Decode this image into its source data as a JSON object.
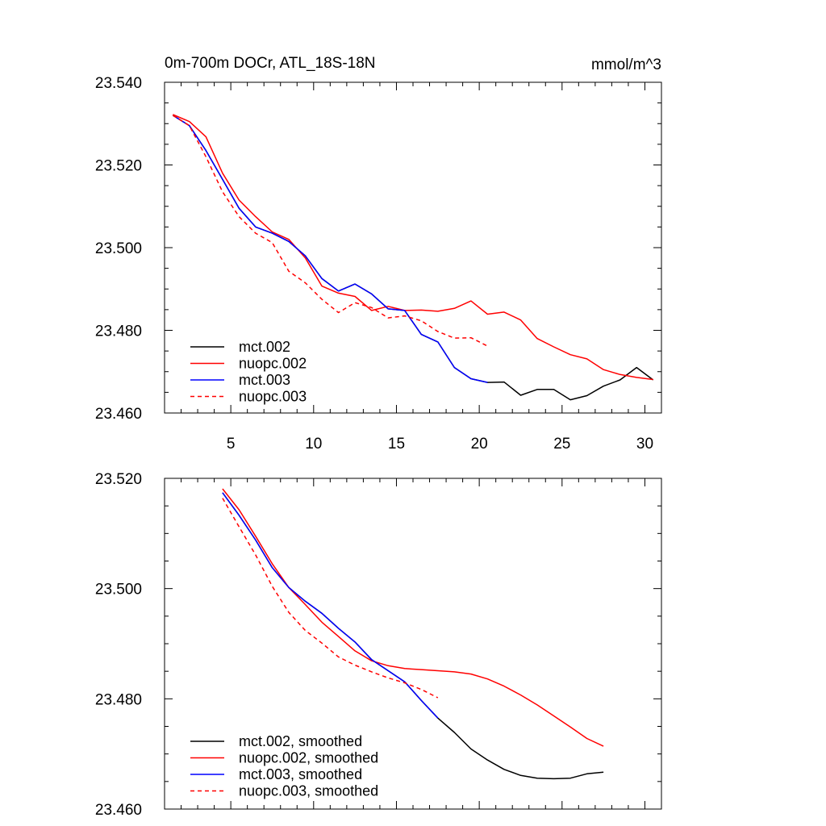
{
  "chart_data": [
    {
      "type": "line",
      "title_left": "0m-700m DOCr, ATL_18S-18N",
      "title_right": "mmol/m^3",
      "xlabel": "",
      "ylabel": "",
      "xlim": [
        1,
        31
      ],
      "ylim": [
        23.46,
        23.54
      ],
      "xticks": [
        5,
        10,
        15,
        20,
        25,
        30
      ],
      "yticks": [
        23.46,
        23.48,
        23.5,
        23.52,
        23.54
      ],
      "ytick_labels": [
        "23.460",
        "23.480",
        "23.500",
        "23.520",
        "23.540"
      ],
      "xtick_labels": [
        "5",
        "10",
        "15",
        "20",
        "25",
        "30"
      ],
      "legend_position": "bottom-left",
      "series": [
        {
          "name": "mct.002",
          "color": "#000000",
          "dash": "solid",
          "x": [
            1.5,
            2.5,
            3.5,
            4.5,
            5.5,
            6.5,
            7.5,
            8.5,
            9.5,
            10.5,
            11.5,
            12.5,
            13.5,
            14.5,
            15.5,
            16.5,
            17.5,
            18.5,
            19.5,
            20.5,
            21.5,
            22.5,
            23.5,
            24.5,
            25.5,
            26.5,
            27.5,
            28.5,
            29.5,
            30.5
          ],
          "y": [
            23.532,
            23.5295,
            23.5235,
            23.5165,
            23.5095,
            23.505,
            23.5035,
            23.5015,
            23.498,
            23.4925,
            23.4895,
            23.4912,
            23.4888,
            23.4852,
            23.4848,
            23.479,
            23.4772,
            23.471,
            23.4683,
            23.4674,
            23.4675,
            23.4643,
            23.4657,
            23.4657,
            23.4632,
            23.4642,
            23.4665,
            23.468,
            23.471,
            23.468
          ]
        },
        {
          "name": "nuopc.002",
          "color": "#ff0000",
          "dash": "solid",
          "x": [
            1.5,
            2.5,
            3.5,
            4.5,
            5.5,
            6.5,
            7.5,
            8.5,
            9.5,
            10.5,
            11.5,
            12.5,
            13.5,
            14.5,
            15.5,
            16.5,
            17.5,
            18.5,
            19.5,
            20.5,
            21.5,
            22.5,
            23.5,
            24.5,
            25.5,
            26.5,
            27.5,
            28.5,
            29.5,
            30.5
          ],
          "y": [
            23.5322,
            23.5305,
            23.5268,
            23.518,
            23.5115,
            23.5075,
            23.5038,
            23.502,
            23.4975,
            23.4907,
            23.489,
            23.4882,
            23.4848,
            23.4858,
            23.4848,
            23.4849,
            23.4846,
            23.4853,
            23.4871,
            23.4839,
            23.4844,
            23.4825,
            23.478,
            23.476,
            23.4741,
            23.4731,
            23.4705,
            23.4693,
            23.4686,
            23.4681
          ]
        },
        {
          "name": "mct.003",
          "color": "#0000ff",
          "dash": "solid",
          "x": [
            1.5,
            2.5,
            3.5,
            4.5,
            5.5,
            6.5,
            7.5,
            8.5,
            9.5,
            10.5,
            11.5,
            12.5,
            13.5,
            14.5,
            15.5,
            16.5,
            17.5,
            18.5,
            19.5,
            20.5
          ],
          "y": [
            23.532,
            23.5295,
            23.5235,
            23.5165,
            23.5095,
            23.505,
            23.5035,
            23.5015,
            23.498,
            23.4925,
            23.4895,
            23.4912,
            23.4888,
            23.4852,
            23.4848,
            23.479,
            23.4772,
            23.471,
            23.4683,
            23.4674
          ]
        },
        {
          "name": "nuopc.003",
          "color": "#ff0000",
          "dash": "dashed",
          "x": [
            1.5,
            2.5,
            3.5,
            4.5,
            5.5,
            6.5,
            7.5,
            8.5,
            9.5,
            10.5,
            11.5,
            12.5,
            13.5,
            14.5,
            15.5,
            16.5,
            17.5,
            18.5,
            19.5,
            20.5
          ],
          "y": [
            23.532,
            23.5295,
            23.522,
            23.5135,
            23.5075,
            23.5035,
            23.5012,
            23.4943,
            23.4915,
            23.4875,
            23.4843,
            23.4867,
            23.4855,
            23.483,
            23.4835,
            23.4823,
            23.4797,
            23.4781,
            23.4782,
            23.4762
          ]
        }
      ]
    },
    {
      "type": "line",
      "title_left": "",
      "title_right": "",
      "xlabel": "",
      "ylabel": "",
      "xlim": [
        1,
        31
      ],
      "ylim": [
        23.46,
        23.52
      ],
      "xticks": [
        5,
        10,
        15,
        20,
        25,
        30
      ],
      "yticks": [
        23.46,
        23.48,
        23.5,
        23.52
      ],
      "ytick_labels": [
        "23.460",
        "23.480",
        "23.500",
        "23.520"
      ],
      "xtick_labels": [],
      "legend_position": "bottom-left",
      "series": [
        {
          "name": "mct.002, smoothed",
          "color": "#000000",
          "dash": "solid",
          "x": [
            4.5,
            5.5,
            6.5,
            7.5,
            8.5,
            9.5,
            10.5,
            11.5,
            12.5,
            13.5,
            14.5,
            15.5,
            16.5,
            17.5,
            18.5,
            19.5,
            20.5,
            21.5,
            22.5,
            23.5,
            24.5,
            25.5,
            26.5,
            27.5
          ],
          "y": [
            23.5174,
            23.5133,
            23.5088,
            23.5038,
            23.5002,
            23.4977,
            23.4955,
            23.4928,
            23.4903,
            23.4871,
            23.4851,
            23.4831,
            23.4797,
            23.4765,
            23.4739,
            23.4709,
            23.4689,
            23.4672,
            23.4661,
            23.4656,
            23.4655,
            23.4656,
            23.4664,
            23.4667
          ]
        },
        {
          "name": "nuopc.002, smoothed",
          "color": "#ff0000",
          "dash": "solid",
          "x": [
            4.5,
            5.5,
            6.5,
            7.5,
            8.5,
            9.5,
            10.5,
            11.5,
            12.5,
            13.5,
            14.5,
            15.5,
            16.5,
            17.5,
            18.5,
            19.5,
            20.5,
            21.5,
            22.5,
            23.5,
            24.5,
            25.5,
            26.5,
            27.5
          ],
          "y": [
            23.5181,
            23.5143,
            23.5095,
            23.5045,
            23.5002,
            23.4971,
            23.4939,
            23.4913,
            23.4887,
            23.4869,
            23.486,
            23.4855,
            23.4853,
            23.4851,
            23.4849,
            23.4845,
            23.4836,
            23.4823,
            23.4807,
            23.4789,
            23.4769,
            23.4749,
            23.4728,
            23.4714
          ]
        },
        {
          "name": "mct.003, smoothed",
          "color": "#0000ff",
          "dash": "solid",
          "x": [
            4.5,
            5.5,
            6.5,
            7.5,
            8.5,
            9.5,
            10.5,
            11.5,
            12.5,
            13.5,
            14.5,
            15.5,
            16.5,
            17.5
          ],
          "y": [
            23.5174,
            23.5133,
            23.5088,
            23.5038,
            23.5002,
            23.4977,
            23.4955,
            23.4928,
            23.4903,
            23.4871,
            23.4851,
            23.4831,
            23.4797,
            23.4765
          ]
        },
        {
          "name": "nuopc.003, smoothed",
          "color": "#ff0000",
          "dash": "dashed",
          "x": [
            4.5,
            5.5,
            6.5,
            7.5,
            8.5,
            9.5,
            10.5,
            11.5,
            12.5,
            13.5,
            14.5,
            15.5,
            16.5,
            17.5
          ],
          "y": [
            23.5164,
            23.5112,
            23.5061,
            23.5004,
            23.4957,
            23.4924,
            23.4901,
            23.4876,
            23.4861,
            23.4849,
            23.4838,
            23.4829,
            23.4817,
            23.4802
          ]
        }
      ]
    }
  ]
}
